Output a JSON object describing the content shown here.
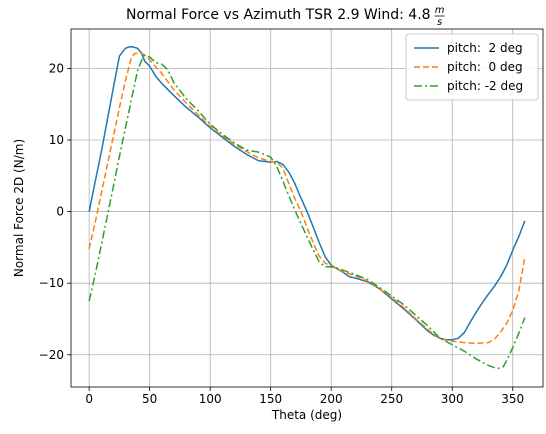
{
  "chart_data": {
    "type": "line",
    "title": "Normal Force vs Azimuth TSR 2.9 Wind: 4.8",
    "title_units": {
      "numerator": "m",
      "denominator": "s"
    },
    "xlabel": "Theta (deg)",
    "ylabel": "Normal Force 2D (N/m)",
    "xlim": [
      -15,
      375
    ],
    "ylim": [
      -24.5,
      25.5
    ],
    "xticks": [
      0,
      50,
      100,
      150,
      200,
      250,
      300,
      350
    ],
    "xtick_labels": [
      "0",
      "50",
      "100",
      "150",
      "200",
      "250",
      "300",
      "350"
    ],
    "yticks": [
      -20,
      -10,
      0,
      10,
      20
    ],
    "ytick_labels": [
      "−20",
      "−10",
      "0",
      "10",
      "20"
    ],
    "grid": true,
    "legend_position": "top-right",
    "series": [
      {
        "name": "pitch:  2 deg",
        "color": "#1f77b4",
        "linestyle": "solid",
        "x": [
          0,
          5,
          10,
          15,
          20,
          25,
          28,
          30,
          33,
          36,
          40,
          43,
          46,
          50,
          55,
          60,
          70,
          80,
          90,
          100,
          110,
          120,
          130,
          140,
          150,
          155,
          160,
          165,
          170,
          175,
          180,
          185,
          190,
          195,
          200,
          205,
          210,
          215,
          220,
          230,
          240,
          250,
          260,
          270,
          280,
          285,
          290,
          295,
          300,
          305,
          310,
          315,
          320,
          325,
          330,
          335,
          340,
          345,
          350,
          355,
          360
        ],
        "y": [
          0,
          4.2,
          8.3,
          12.8,
          17.3,
          21.7,
          22.4,
          22.8,
          23.0,
          23.0,
          22.8,
          22.2,
          21.0,
          20.3,
          18.9,
          17.9,
          16.2,
          14.6,
          13.2,
          11.7,
          10.4,
          9.1,
          8.0,
          7.1,
          6.9,
          7.0,
          6.6,
          5.5,
          3.9,
          1.9,
          0,
          -2.1,
          -4.3,
          -6.3,
          -7.5,
          -8.0,
          -8.5,
          -9.1,
          -9.3,
          -9.8,
          -10.8,
          -12.2,
          -13.6,
          -15.1,
          -16.7,
          -17.3,
          -17.7,
          -17.9,
          -17.9,
          -17.7,
          -16.9,
          -15.4,
          -14.0,
          -12.7,
          -11.5,
          -10.4,
          -9.1,
          -7.5,
          -5.4,
          -3.5,
          -1.3
        ]
      },
      {
        "name": "pitch:  0 deg",
        "color": "#ff7f0e",
        "linestyle": "dashed",
        "x": [
          0,
          5,
          10,
          15,
          20,
          25,
          30,
          35,
          38,
          42,
          45,
          50,
          55,
          60,
          70,
          80,
          90,
          100,
          110,
          120,
          130,
          140,
          150,
          155,
          160,
          165,
          170,
          175,
          180,
          185,
          190,
          195,
          200,
          205,
          210,
          220,
          230,
          240,
          250,
          260,
          270,
          280,
          290,
          300,
          310,
          320,
          330,
          335,
          340,
          345,
          350,
          355,
          360
        ],
        "y": [
          -5.2,
          -1.5,
          2.5,
          6.5,
          10.5,
          14.5,
          18.3,
          21.6,
          22.1,
          22.1,
          22.0,
          21.2,
          20.2,
          19.3,
          17.0,
          15.2,
          13.5,
          11.9,
          10.6,
          9.4,
          8.4,
          7.5,
          7.0,
          6.9,
          6.1,
          3.9,
          1.8,
          0,
          -2.2,
          -4.3,
          -6.2,
          -7.2,
          -7.6,
          -8.0,
          -8.4,
          -9.0,
          -9.7,
          -10.8,
          -12.0,
          -13.4,
          -15.0,
          -16.5,
          -17.8,
          -18.1,
          -18.3,
          -18.4,
          -18.3,
          -17.8,
          -16.8,
          -15.6,
          -13.8,
          -11.1,
          -6.3
        ]
      },
      {
        "name": "pitch: -2 deg",
        "color": "#2ca02c",
        "linestyle": "dashdot",
        "x": [
          0,
          5,
          10,
          15,
          20,
          25,
          30,
          35,
          40,
          45,
          50,
          55,
          60,
          65,
          70,
          80,
          90,
          100,
          110,
          120,
          130,
          140,
          150,
          155,
          160,
          165,
          170,
          175,
          180,
          185,
          190,
          195,
          200,
          205,
          210,
          220,
          230,
          240,
          250,
          260,
          270,
          280,
          290,
          300,
          310,
          320,
          330,
          335,
          338,
          342,
          345,
          350,
          355,
          360
        ],
        "y": [
          -12.5,
          -8.8,
          -4.7,
          -0.6,
          3.5,
          7.7,
          11.7,
          15.7,
          19.7,
          21.8,
          21.6,
          20.8,
          20.6,
          19.8,
          18.0,
          15.8,
          14.1,
          12.2,
          10.8,
          9.6,
          8.6,
          8.3,
          7.6,
          6.3,
          4.3,
          2.2,
          0.2,
          -1.7,
          -3.5,
          -5.3,
          -7.0,
          -7.7,
          -7.7,
          -7.9,
          -8.2,
          -8.8,
          -9.5,
          -10.6,
          -11.8,
          -13.0,
          -14.5,
          -16.0,
          -17.7,
          -18.6,
          -19.5,
          -20.6,
          -21.5,
          -21.8,
          -21.9,
          -21.7,
          -20.8,
          -19.0,
          -17.0,
          -14.8
        ]
      }
    ]
  }
}
